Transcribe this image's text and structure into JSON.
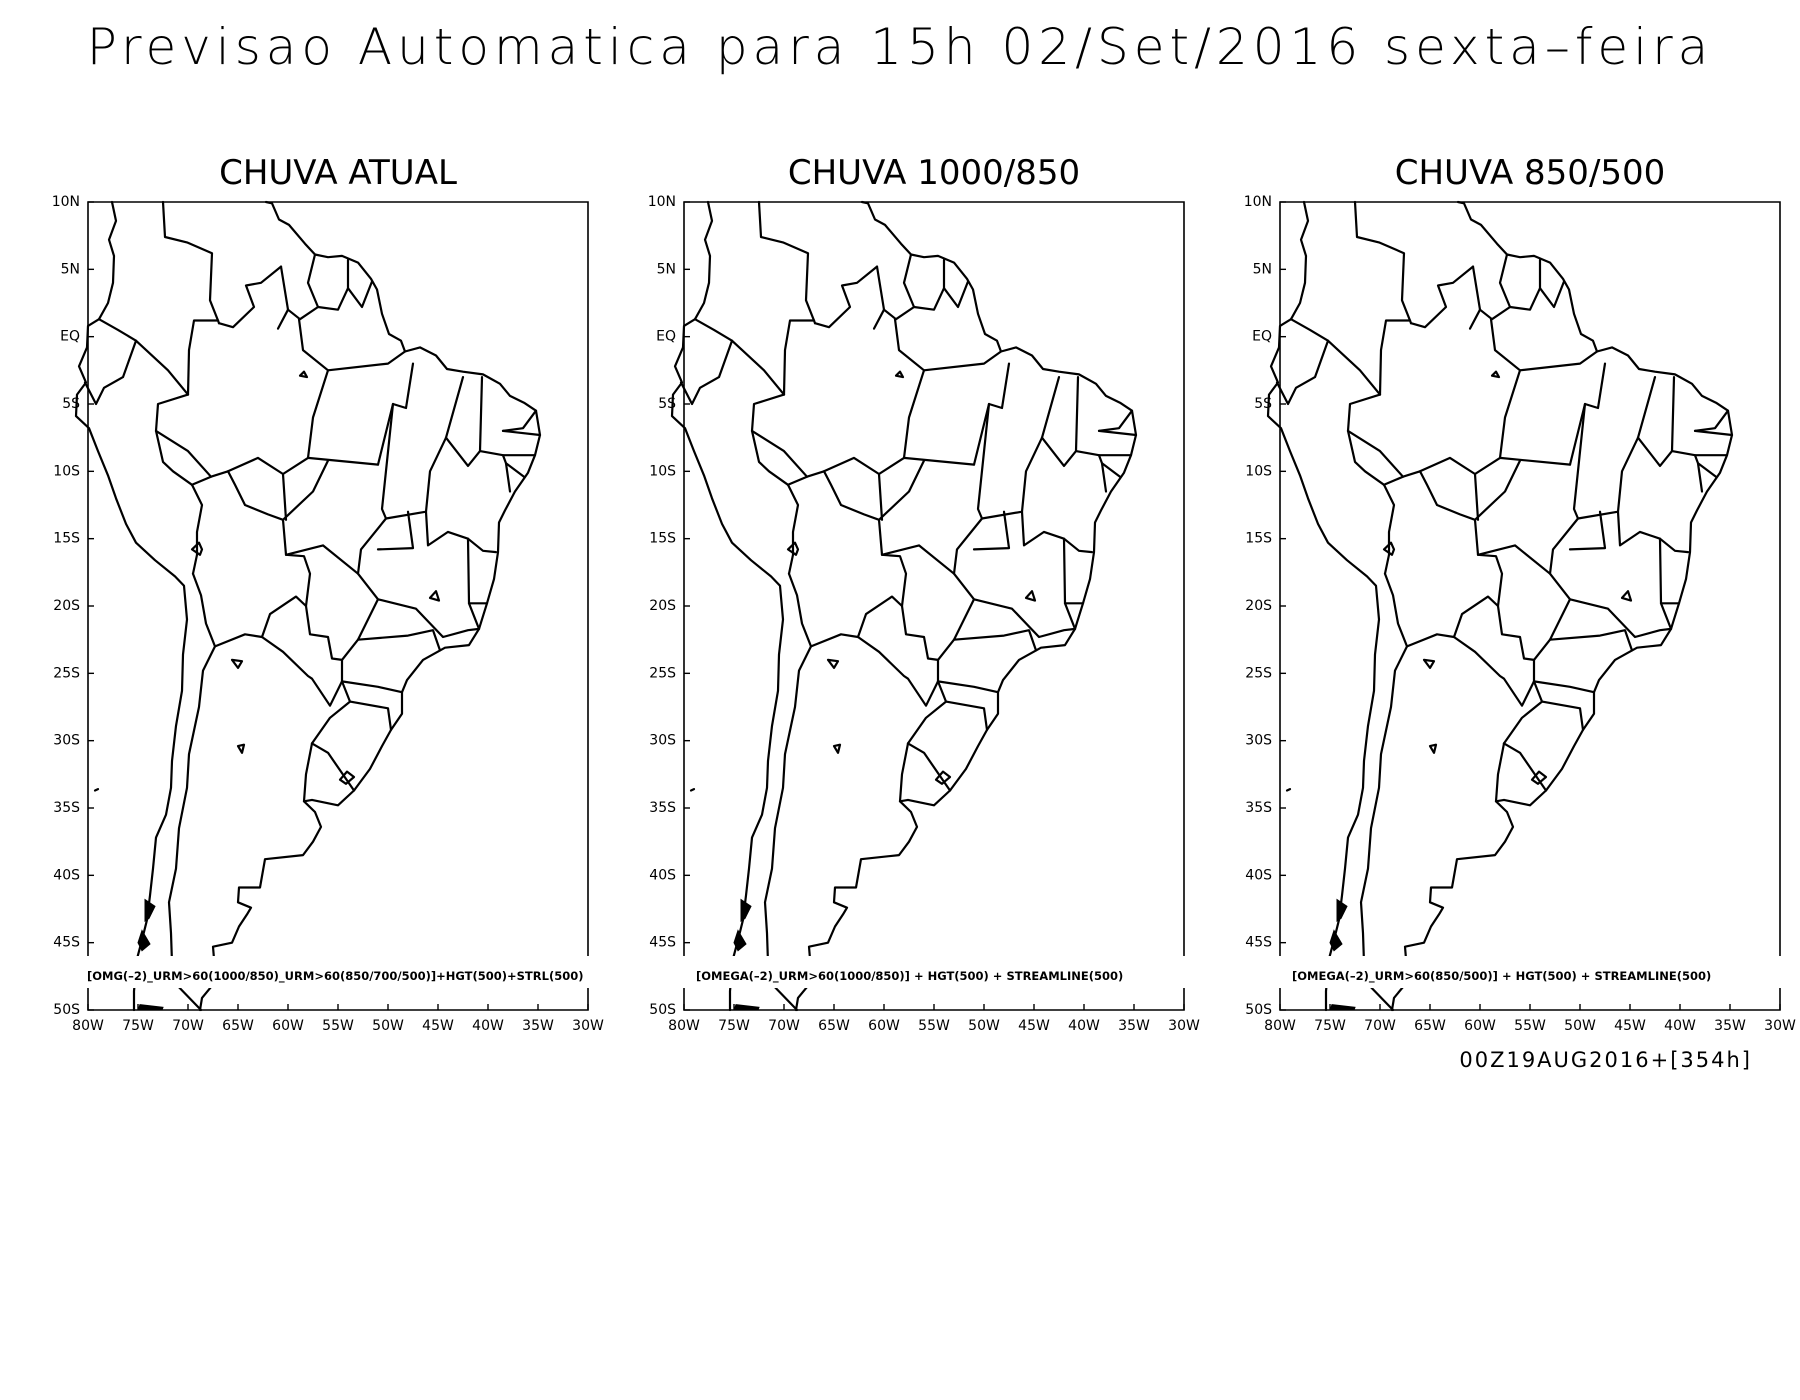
{
  "title": "Previsao Automatica para 15h 02/Set/2016 sexta–feira",
  "run_stamp": "00Z19AUG2016+[354h]",
  "lat_labels": [
    "10N",
    "5N",
    "EQ",
    "5S",
    "10S",
    "15S",
    "20S",
    "25S",
    "30S",
    "35S",
    "40S",
    "45S",
    "50S"
  ],
  "lon_labels": [
    "80W",
    "75W",
    "70W",
    "65W",
    "60W",
    "55W",
    "50W",
    "45W",
    "40W",
    "35W",
    "30W"
  ],
  "panels": [
    {
      "title": "CHUVA ATUAL",
      "caption": "[OMG(–2)_URM>60(1000/850)_URM>60(850/700/500)]+HGT(500)+STRL(500)"
    },
    {
      "title": "CHUVA 1000/850",
      "caption": "[OMEGA(–2)_URM>60(1000/850)] + HGT(500) + STREAMLINE(500)"
    },
    {
      "title": "CHUVA 850/500",
      "caption": "[OMEGA(–2)_URM>60(850/500)] + HGT(500) + STREAMLINE(500)"
    }
  ],
  "map_extent": {
    "lon": [
      -80,
      -30
    ],
    "lat": [
      -50,
      10
    ]
  },
  "colors": {
    "background": "#ffffff",
    "lines": "#000000"
  }
}
